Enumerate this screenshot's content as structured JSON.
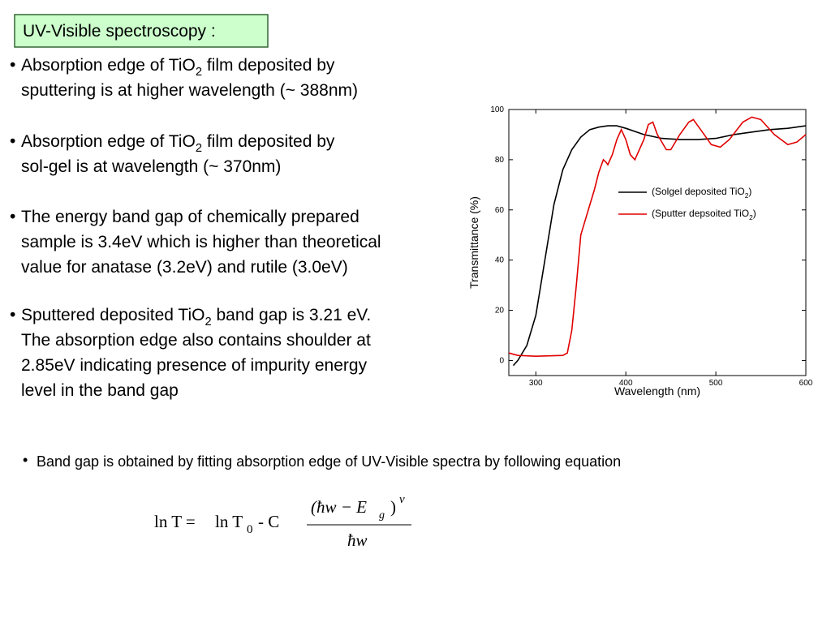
{
  "title": "UV-Visible spectroscopy :",
  "bullets": [
    [
      "Absorption edge of TiO2 film deposited by",
      "sputtering is at higher wavelength (~ 388nm)"
    ],
    [
      "Absorption edge of TiO2 film deposited by",
      "sol-gel is at wavelength (~ 370nm)"
    ],
    [
      "The energy band gap of chemically prepared",
      "sample is 3.4eV which is higher than theoretical",
      " value for anatase (3.2eV) and rutile (3.0eV)"
    ],
    [
      "Sputtered deposited TiO2 band gap is 3.21 eV.",
      "The absorption edge also contains shoulder at",
      "2.85eV indicating presence of impurity energy",
      "level in the band gap"
    ]
  ],
  "note": "Band gap is obtained by fitting absorption edge of UV-Visible spectra by following equation",
  "equation": {
    "lhs": "ln T =",
    "rhs": "ln T",
    "rhs_sub": "0",
    "rhs_tail": "-  C",
    "numerator": "(ħw − E",
    "numerator_sub": "g",
    "numerator_close": ")",
    "exponent": "ν",
    "denominator": "ħw"
  },
  "chart_data": {
    "type": "line",
    "xlabel": "Wavelength (nm)",
    "ylabel": "Transmittance (%)",
    "xlim": [
      270,
      600
    ],
    "ylim": [
      -6,
      100
    ],
    "xticks": [
      300,
      400,
      500,
      600
    ],
    "yticks": [
      0,
      20,
      40,
      60,
      80,
      100
    ],
    "legend": "right",
    "series": [
      {
        "name": "(Solgel deposited TiO2)",
        "color": "#000000",
        "x": [
          275,
          280,
          290,
          300,
          310,
          320,
          330,
          340,
          350,
          360,
          370,
          380,
          390,
          400,
          420,
          440,
          460,
          480,
          500,
          520,
          540,
          560,
          580,
          600
        ],
        "values": [
          -2,
          0,
          6,
          18,
          40,
          62,
          76,
          84,
          89,
          92,
          93,
          93.5,
          93.5,
          92.5,
          90,
          88.5,
          88,
          88,
          88.5,
          90,
          91,
          92,
          92.5,
          93.5
        ]
      },
      {
        "name": "(Sputter depsoited TiO2)",
        "color": "#e00000",
        "x": [
          270,
          280,
          300,
          330,
          335,
          340,
          345,
          350,
          360,
          365,
          370,
          375,
          378,
          380,
          385,
          390,
          395,
          400,
          405,
          410,
          420,
          425,
          430,
          435,
          445,
          450,
          460,
          470,
          475,
          485,
          495,
          505,
          515,
          530,
          540,
          550,
          565,
          580,
          590,
          600
        ],
        "values": [
          3,
          2,
          1.7,
          2,
          3,
          12,
          30,
          50,
          62,
          68,
          75,
          80,
          79,
          78,
          82,
          88,
          92,
          88,
          82,
          80,
          88,
          94,
          95,
          90,
          84,
          84,
          90,
          95,
          96,
          91,
          86,
          85,
          88,
          95,
          97,
          96,
          90,
          86,
          87,
          90
        ]
      }
    ]
  }
}
